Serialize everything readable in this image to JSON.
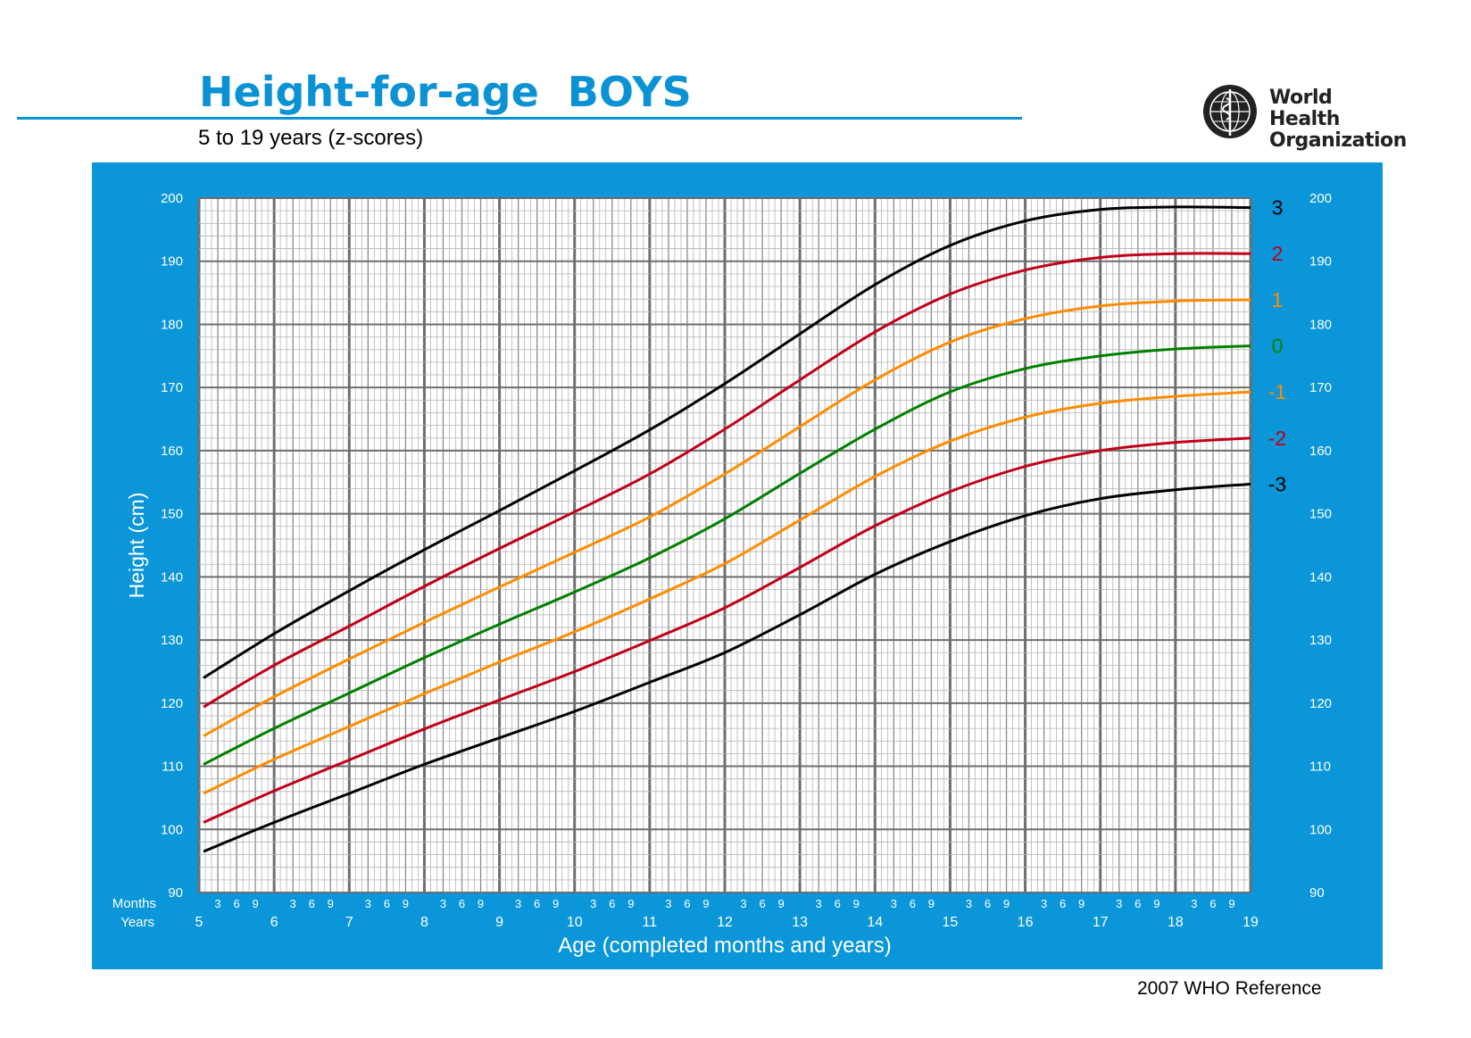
{
  "header": {
    "title": "Height-for-age  BOYS",
    "subtitle": "5 to 19 years (z-scores)",
    "footer": "2007 WHO Reference",
    "logo_text_line1": "World Health",
    "logo_text_line2": "Organization"
  },
  "colors": {
    "brand_blue": "#0A96D8",
    "line_black": "#000000",
    "line_red": "#C00018",
    "line_orange": "#FF8C00",
    "line_green": "#008000"
  },
  "chart_data": {
    "type": "line",
    "xlabel": "Age (completed months and years)",
    "ylabel": "Height (cm)",
    "xlim": [
      5,
      19
    ],
    "ylim": [
      90,
      200
    ],
    "y_ticks": [
      90,
      100,
      110,
      120,
      130,
      140,
      150,
      160,
      170,
      180,
      190,
      200
    ],
    "x_year_ticks": [
      "5",
      "6",
      "7",
      "8",
      "9",
      "10",
      "11",
      "12",
      "13",
      "14",
      "15",
      "16",
      "17",
      "18",
      "19"
    ],
    "month_ticks": [
      "3",
      "6",
      "9"
    ],
    "row_labels": {
      "months": "Months",
      "years": "Years"
    },
    "grid": true,
    "x": [
      5,
      6,
      7,
      8,
      9,
      10,
      11,
      12,
      13,
      14,
      15,
      16,
      17,
      18,
      19
    ],
    "series": [
      {
        "name": "3",
        "color": "#000000",
        "values": [
          124.0,
          131.0,
          137.8,
          144.3,
          150.5,
          156.8,
          163.3,
          170.6,
          178.5,
          186.3,
          192.5,
          196.4,
          198.2,
          198.6,
          198.5
        ]
      },
      {
        "name": "2",
        "color": "#C00018",
        "values": [
          119.4,
          126.0,
          132.2,
          138.5,
          144.5,
          150.3,
          156.3,
          163.4,
          171.2,
          178.8,
          184.8,
          188.6,
          190.6,
          191.2,
          191.2
        ]
      },
      {
        "name": "1",
        "color": "#FF8C00",
        "values": [
          114.8,
          121.0,
          127.0,
          132.8,
          138.4,
          143.9,
          149.5,
          156.3,
          163.8,
          171.2,
          177.2,
          180.9,
          182.9,
          183.7,
          183.9
        ]
      },
      {
        "name": "0",
        "color": "#008000",
        "values": [
          110.3,
          116.0,
          121.6,
          127.2,
          132.5,
          137.6,
          143.0,
          149.2,
          156.4,
          163.4,
          169.3,
          173.0,
          175.0,
          176.1,
          176.6
        ]
      },
      {
        "name": "-1",
        "color": "#FF8C00",
        "values": [
          105.7,
          111.1,
          116.3,
          121.5,
          126.5,
          131.3,
          136.5,
          142.1,
          149.0,
          155.9,
          161.5,
          165.3,
          167.5,
          168.6,
          169.3
        ]
      },
      {
        "name": "-2",
        "color": "#C00018",
        "values": [
          101.1,
          106.1,
          111.0,
          115.9,
          120.5,
          125.0,
          129.9,
          135.1,
          141.5,
          148.1,
          153.5,
          157.5,
          160.0,
          161.3,
          162.0
        ]
      },
      {
        "name": "-3",
        "color": "#000000",
        "values": [
          96.5,
          101.1,
          105.7,
          110.3,
          114.5,
          118.7,
          123.3,
          128.0,
          134.0,
          140.4,
          145.6,
          149.7,
          152.4,
          153.8,
          154.7
        ]
      }
    ]
  }
}
